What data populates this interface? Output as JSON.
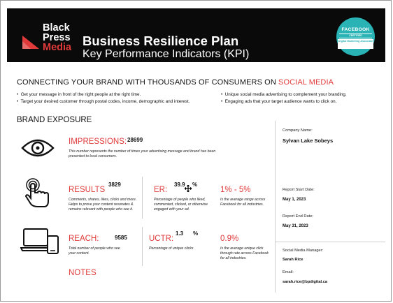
{
  "header": {
    "logo_lines": [
      "Black",
      "Press",
      "Media"
    ],
    "title": "Business Resilience Plan",
    "subtitle": "Key Performance Indicators (KPI)",
    "badge": {
      "line1": "FACEBOOK",
      "line2": "CERTIFIED",
      "line3": "Digital Marketing Associate"
    }
  },
  "tagline": {
    "prefix": "CONNECTING YOUR BRAND WITH THOUSANDS OF CONSUMERS ON ",
    "highlight": "SOCIAL MEDIA"
  },
  "bullets_left": [
    "Get your message in front of the right people at the right time.",
    "Target your desired customer through postal codes, income, demographic and interest."
  ],
  "bullets_right": [
    "Unique social media advertising to complement your branding.",
    "Engaging ads that your target audience wants to click on."
  ],
  "section_title": "BRAND EXPOSURE",
  "impressions": {
    "label": "IMPRESSIONS:",
    "value": "28699",
    "desc": "This number represents the number of times your advertising message and brand has been presented to local consumers."
  },
  "results": {
    "label": "RESULTS",
    "value": "3829",
    "desc": "Comments, shares, likes, clicks and more. Helps to prove your content resonates & remains relevant with people who see it."
  },
  "er": {
    "label": "ER:",
    "value": "39.9",
    "unit": "%",
    "desc": "Percentage of people who liked, commented, clicked, or otherwise engaged with your ad.",
    "benchmark": "1% - 5%",
    "benchmark_desc": "Is the average range across Facebook for all industries."
  },
  "reach": {
    "label": "REACH:",
    "value": "9585",
    "desc": "Total number of people who see your content."
  },
  "uctr": {
    "label": "UCTR:",
    "value": "1.3",
    "unit": "%",
    "desc": "Percentage of unique clicks",
    "benchmark": "0.9%",
    "benchmark_desc": "Is the average unique click through rate across Facebook for all industries."
  },
  "notes_label": "NOTES",
  "sidebar": {
    "company_label": "Company Name:",
    "company_value": "Sylvan Lake Sobeys",
    "start_label": "Report Start Date:",
    "start_value": "May 1, 2023",
    "end_label": "Report End Date:",
    "end_value": "May 31, 2023",
    "manager_label": "Social Media Manager:",
    "manager_value": "Sarah Rice",
    "email_label": "Email:",
    "email_value": "sarah.rice@bpdigital.ca"
  },
  "colors": {
    "accent": "#e03a3a",
    "badge": "#29b3b5",
    "header_bg": "#0a0a0a"
  }
}
